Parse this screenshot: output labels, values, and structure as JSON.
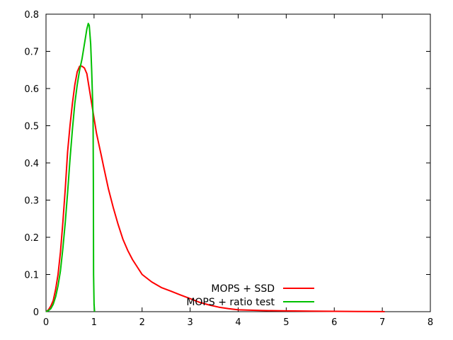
{
  "chart_data": {
    "type": "line",
    "title": "",
    "xlabel": "",
    "ylabel": "",
    "xlim": [
      0,
      8
    ],
    "ylim": [
      0,
      0.8
    ],
    "xticks": [
      "0",
      "1",
      "2",
      "3",
      "4",
      "5",
      "6",
      "7",
      "8"
    ],
    "yticks": [
      "0",
      "0.1",
      "0.2",
      "0.3",
      "0.4",
      "0.5",
      "0.6",
      "0.7",
      "0.8"
    ],
    "grid": false,
    "legend_position": "bottom-right",
    "series": [
      {
        "name": "MOPS + SSD",
        "color": "#ff0000",
        "x": [
          0,
          0.05,
          0.1,
          0.15,
          0.2,
          0.25,
          0.3,
          0.35,
          0.4,
          0.45,
          0.5,
          0.55,
          0.6,
          0.65,
          0.7,
          0.75,
          0.8,
          0.85,
          0.9,
          0.95,
          1.0,
          1.05,
          1.1,
          1.15,
          1.2,
          1.3,
          1.4,
          1.5,
          1.6,
          1.7,
          1.8,
          1.9,
          2.0,
          2.2,
          2.4,
          2.6,
          2.8,
          3.0,
          3.2,
          3.4,
          3.6,
          3.8,
          4.0,
          4.5,
          5.0,
          5.5,
          6.0,
          6.5,
          7.0,
          7.05
        ],
        "y": [
          0,
          0.005,
          0.015,
          0.03,
          0.06,
          0.1,
          0.16,
          0.24,
          0.33,
          0.43,
          0.5,
          0.56,
          0.61,
          0.645,
          0.66,
          0.66,
          0.655,
          0.64,
          0.6,
          0.56,
          0.52,
          0.48,
          0.45,
          0.42,
          0.39,
          0.33,
          0.28,
          0.235,
          0.195,
          0.165,
          0.14,
          0.12,
          0.1,
          0.08,
          0.065,
          0.055,
          0.045,
          0.035,
          0.025,
          0.018,
          0.012,
          0.008,
          0.005,
          0.003,
          0.002,
          0.0015,
          0.001,
          0.0005,
          0.0002,
          0
        ]
      },
      {
        "name": "MOPS + ratio test",
        "color": "#00c000",
        "x": [
          0,
          0.05,
          0.1,
          0.15,
          0.2,
          0.25,
          0.3,
          0.35,
          0.4,
          0.45,
          0.5,
          0.55,
          0.6,
          0.65,
          0.7,
          0.75,
          0.8,
          0.85,
          0.88,
          0.9,
          0.93,
          0.95,
          0.97,
          0.98,
          0.985,
          0.99,
          1.0,
          1.01
        ],
        "y": [
          0,
          0.003,
          0.008,
          0.02,
          0.04,
          0.07,
          0.11,
          0.17,
          0.24,
          0.32,
          0.41,
          0.49,
          0.56,
          0.61,
          0.65,
          0.68,
          0.72,
          0.76,
          0.775,
          0.77,
          0.72,
          0.65,
          0.57,
          0.52,
          0.35,
          0.1,
          0.02,
          0
        ]
      }
    ]
  }
}
